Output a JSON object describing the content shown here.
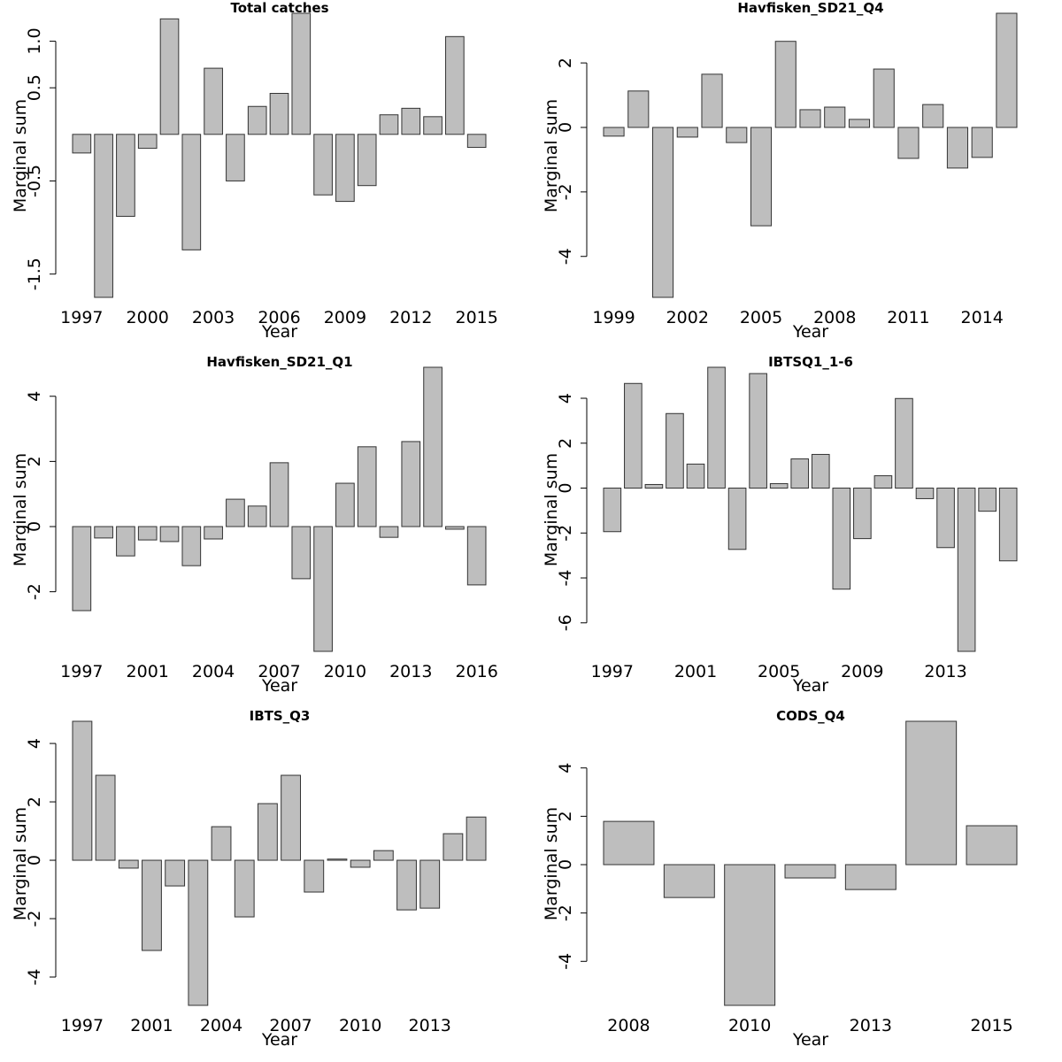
{
  "chart_data": [
    {
      "type": "bar",
      "title": "Total catches",
      "x_label": "Year",
      "y_label": "Marginal sum",
      "color": "#bebebe",
      "categories": [
        "1997",
        null,
        null,
        "2000",
        null,
        null,
        "2003",
        null,
        null,
        "2006",
        null,
        null,
        "2009",
        null,
        null,
        "2012",
        null,
        null,
        "2015"
      ],
      "values": [
        -0.2,
        -1.75,
        -0.88,
        -0.15,
        1.24,
        -1.24,
        0.71,
        -0.5,
        0.3,
        0.44,
        1.3,
        -0.65,
        -0.72,
        -0.55,
        0.21,
        0.28,
        0.19,
        1.05,
        -0.14
      ],
      "ylim": [
        -1.75,
        1.3
      ],
      "yticks": [
        {
          "value": 1,
          "label": "1.0"
        },
        0.5,
        -0.5,
        -1.5
      ]
    },
    {
      "type": "bar",
      "title": "Havfisken_SD21_Q4",
      "x_label": "Year",
      "y_label": "Marginal sum",
      "color": "#bebebe",
      "categories": [
        "1999",
        null,
        null,
        "2002",
        null,
        null,
        "2005",
        null,
        null,
        "2008",
        null,
        null,
        "2011",
        null,
        null,
        "2014",
        null
      ],
      "values": [
        -0.27,
        1.13,
        -5.27,
        -0.3,
        1.65,
        -0.47,
        -3.05,
        2.67,
        0.55,
        0.63,
        0.25,
        1.81,
        -0.96,
        0.71,
        -1.26,
        -0.93,
        3.54
      ],
      "ylim": [
        -5.27,
        3.54
      ],
      "yticks": [
        2,
        0,
        -2,
        -4
      ]
    },
    {
      "type": "bar",
      "title": "Havfisken_SD21_Q1",
      "x_label": "Year",
      "y_label": "Marginal sum",
      "color": "#bebebe",
      "categories": [
        "1997",
        null,
        null,
        "2001",
        null,
        null,
        "2004",
        null,
        null,
        "2007",
        null,
        null,
        "2010",
        null,
        null,
        "2013",
        null,
        null,
        "2016"
      ],
      "values": [
        -2.58,
        -0.35,
        -0.9,
        -0.41,
        -0.46,
        -1.2,
        -0.38,
        0.84,
        0.63,
        1.96,
        -1.6,
        -3.83,
        1.33,
        2.45,
        -0.33,
        2.61,
        4.89,
        -0.08,
        -1.79
      ],
      "ylim": [
        -3.83,
        4.89
      ],
      "yticks": [
        4,
        2,
        0,
        -2
      ]
    },
    {
      "type": "bar",
      "title": "IBTSQ1_1-6",
      "x_label": "Year",
      "y_label": "Marginal sum",
      "color": "#bebebe",
      "categories": [
        "1997",
        null,
        null,
        null,
        "2001",
        null,
        null,
        null,
        "2005",
        null,
        null,
        null,
        "2009",
        null,
        null,
        null,
        "2013",
        null,
        null,
        null
      ],
      "values": [
        -1.94,
        4.66,
        0.16,
        3.32,
        1.07,
        5.38,
        -2.73,
        5.1,
        0.2,
        1.3,
        1.5,
        -4.5,
        -2.25,
        0.55,
        3.99,
        -0.47,
        -2.65,
        -7.27,
        -1.03,
        -3.24
      ],
      "ylim": [
        -7.27,
        5.38
      ],
      "yticks": [
        4,
        2,
        0,
        -2,
        -4,
        -6
      ]
    },
    {
      "type": "bar",
      "title": "IBTS_Q3",
      "x_label": "Year",
      "y_label": "Marginal sum",
      "color": "#bebebe",
      "categories": [
        "1997",
        null,
        null,
        "2001",
        null,
        null,
        "2004",
        null,
        null,
        "2007",
        null,
        null,
        "2010",
        null,
        null,
        "2013",
        null,
        null
      ],
      "values": [
        4.76,
        2.91,
        -0.27,
        -3.09,
        -0.88,
        -4.97,
        1.15,
        -1.94,
        1.94,
        2.91,
        -1.09,
        0.04,
        -0.24,
        0.33,
        -1.7,
        -1.64,
        0.91,
        1.48
      ],
      "ylim": [
        -4.97,
        4.76
      ],
      "yticks": [
        4,
        2,
        0,
        -2,
        -4
      ]
    },
    {
      "type": "bar",
      "title": "CODS_Q4",
      "x_label": "Year",
      "y_label": "Marginal sum",
      "color": "#bebebe",
      "categories": [
        "2008",
        null,
        "2010",
        null,
        "2013",
        null,
        "2015"
      ],
      "values": [
        1.79,
        -1.36,
        -5.82,
        -0.55,
        -1.03,
        5.93,
        1.61
      ],
      "ylim": [
        -5.82,
        5.93
      ],
      "yticks": [
        4,
        2,
        0,
        -2,
        -4
      ]
    }
  ]
}
